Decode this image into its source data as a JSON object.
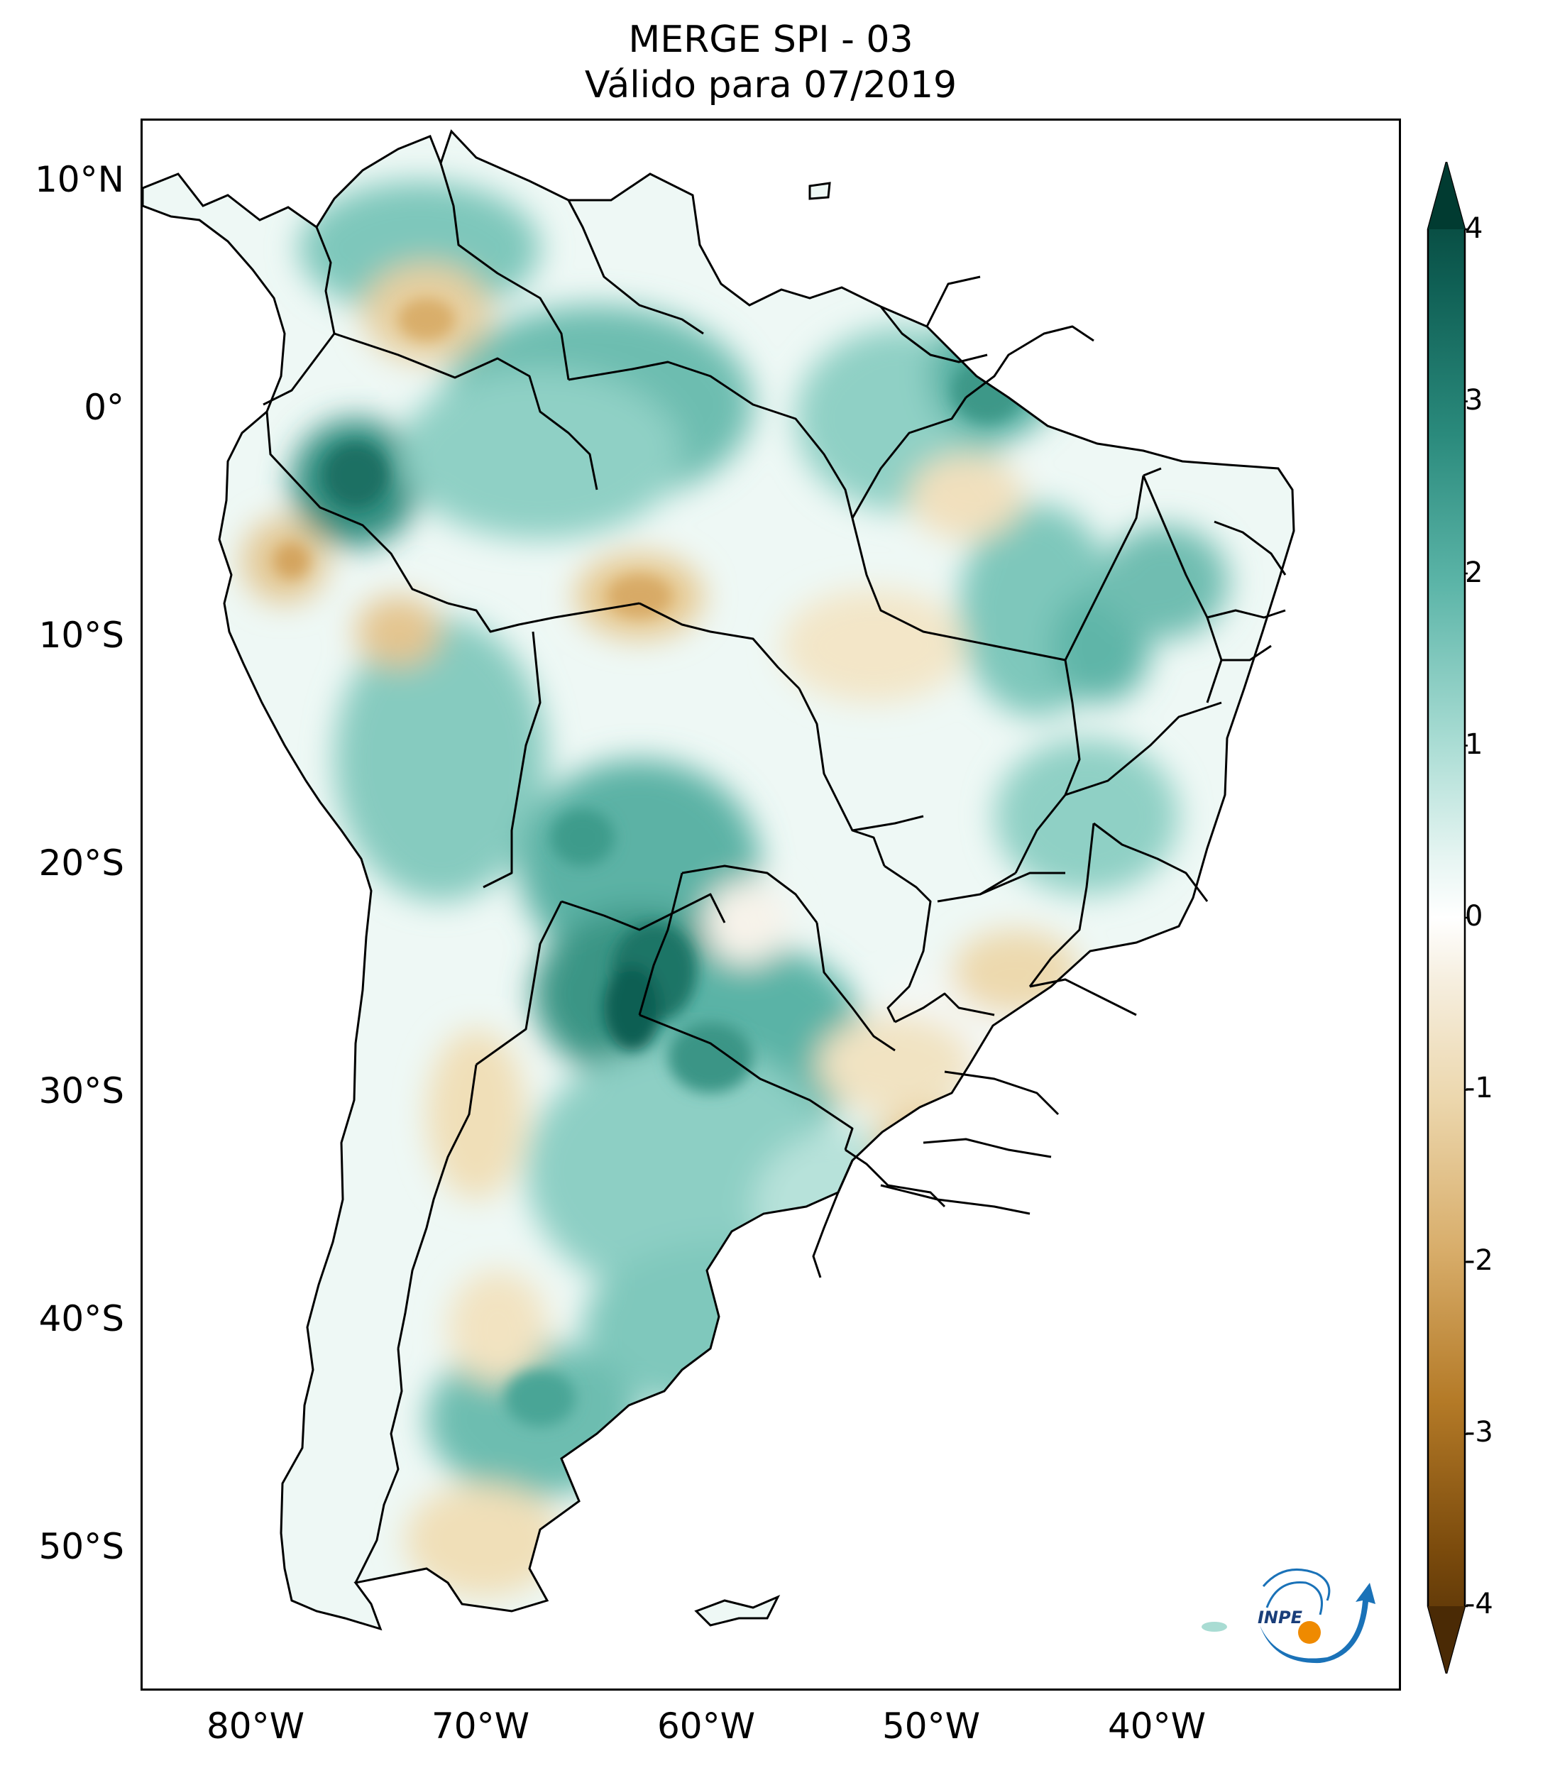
{
  "title": {
    "line1": "MERGE   SPI - 03",
    "line2": "Válido para 07/2019"
  },
  "map": {
    "region": "South America",
    "lon_range": [
      -85,
      -29
    ],
    "lat_range": [
      -56,
      13
    ],
    "y_ticks": [
      {
        "lat": 10,
        "label": "10°N"
      },
      {
        "lat": 0,
        "label": "0°"
      },
      {
        "lat": -10,
        "label": "10°S"
      },
      {
        "lat": -20,
        "label": "20°S"
      },
      {
        "lat": -30,
        "label": "30°S"
      },
      {
        "lat": -40,
        "label": "40°S"
      },
      {
        "lat": -50,
        "label": "50°S"
      }
    ],
    "x_ticks": [
      {
        "lon": -80,
        "label": "80°W"
      },
      {
        "lon": -70,
        "label": "70°W"
      },
      {
        "lon": -60,
        "label": "60°W"
      },
      {
        "lon": -50,
        "label": "50°W"
      },
      {
        "lon": -40,
        "label": "40°W"
      }
    ],
    "colors": {
      "strong_wet": "#0b5e52",
      "wet": "#4fae9f",
      "mild_wet": "#a9dcd3",
      "neutral": "#ffffff",
      "mild_dry": "#ecdcb6",
      "dry": "#d5a45a",
      "strong_dry": "#4a2a05"
    }
  },
  "colorbar": {
    "min": -4,
    "max": 4,
    "extend": "both",
    "ticks": [
      {
        "value": 4,
        "label": "4"
      },
      {
        "value": 3,
        "label": "3"
      },
      {
        "value": 2,
        "label": "2"
      },
      {
        "value": 1,
        "label": "1"
      },
      {
        "value": 0,
        "label": "0"
      },
      {
        "value": -1,
        "label": "-1"
      },
      {
        "value": -2,
        "label": "-2"
      },
      {
        "value": -3,
        "label": "-3"
      },
      {
        "value": -4,
        "label": "-4"
      }
    ]
  },
  "logo": {
    "text": "INPE",
    "icon": "inpe-logo-icon",
    "orange": "#ef8a00",
    "blue": "#1a72b8"
  }
}
